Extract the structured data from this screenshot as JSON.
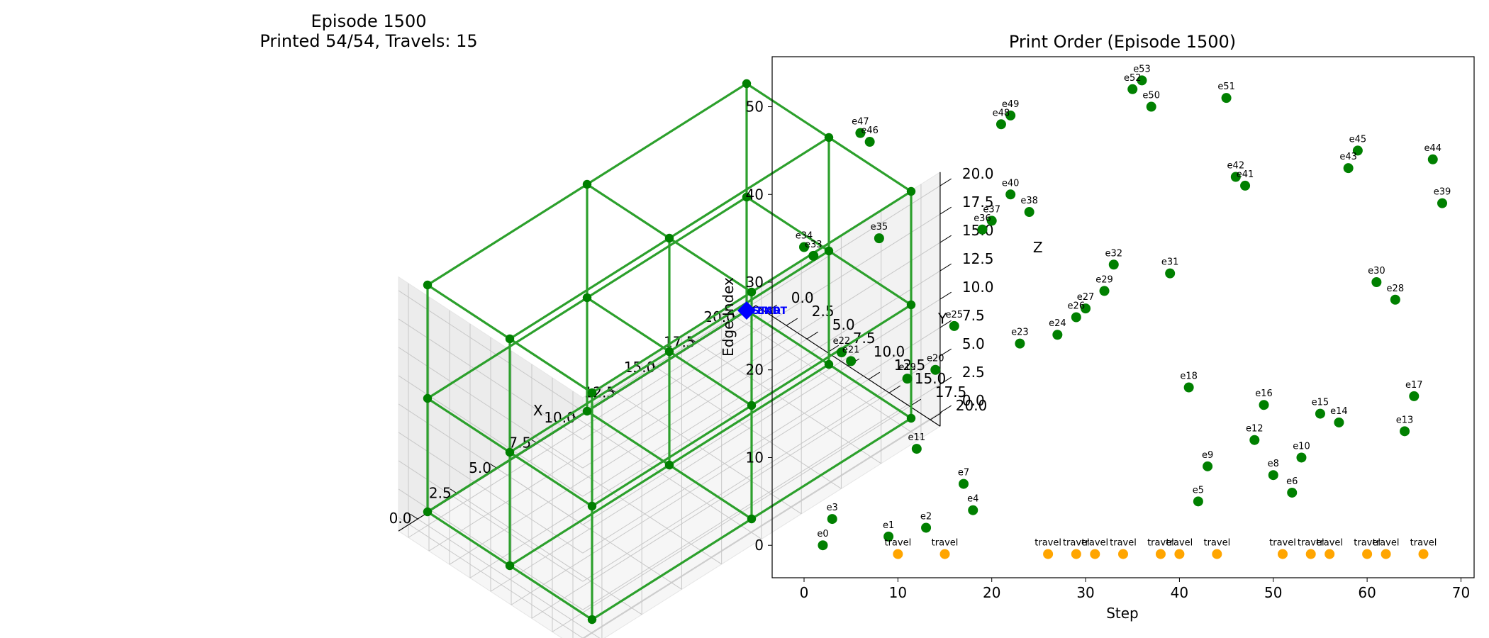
{
  "chart_data": [
    {
      "type": "line3d",
      "title_line1": "Episode 1500",
      "title_line2": "Printed 54/54, Travels: 15",
      "xlabel": "X",
      "ylabel": "Y",
      "zlabel": "Z",
      "xlim": [
        0,
        20
      ],
      "ylim": [
        0,
        20
      ],
      "zlim": [
        0,
        20
      ],
      "ticks": [
        "0.0",
        "2.5",
        "5.0",
        "7.5",
        "10.0",
        "12.5",
        "15.0",
        "17.5",
        "20.0"
      ],
      "grid": true,
      "edge_color": "#2ca02c",
      "node_color": "#008000",
      "start_color": "#0000ff",
      "start_marker": {
        "x": 20,
        "y": 0,
        "z": 0,
        "label": "START"
      },
      "end_label": "END",
      "nodes": [
        [
          0,
          0,
          0
        ],
        [
          10,
          0,
          0
        ],
        [
          20,
          0,
          0
        ],
        [
          0,
          10,
          0
        ],
        [
          10,
          10,
          0
        ],
        [
          20,
          10,
          0
        ],
        [
          0,
          20,
          0
        ],
        [
          10,
          20,
          0
        ],
        [
          20,
          20,
          0
        ],
        [
          0,
          0,
          10
        ],
        [
          10,
          0,
          10
        ],
        [
          20,
          0,
          10
        ],
        [
          0,
          10,
          10
        ],
        [
          10,
          10,
          10
        ],
        [
          20,
          10,
          10
        ],
        [
          0,
          20,
          10
        ],
        [
          10,
          20,
          10
        ],
        [
          20,
          20,
          10
        ],
        [
          0,
          0,
          20
        ],
        [
          10,
          0,
          20
        ],
        [
          20,
          0,
          20
        ],
        [
          0,
          10,
          20
        ],
        [
          10,
          10,
          20
        ],
        [
          20,
          10,
          20
        ],
        [
          0,
          20,
          20
        ],
        [
          10,
          20,
          20
        ],
        [
          20,
          20,
          20
        ]
      ],
      "edges": [
        [
          0,
          1
        ],
        [
          1,
          2
        ],
        [
          3,
          4
        ],
        [
          4,
          5
        ],
        [
          6,
          7
        ],
        [
          7,
          8
        ],
        [
          0,
          3
        ],
        [
          3,
          6
        ],
        [
          1,
          4
        ],
        [
          4,
          7
        ],
        [
          2,
          5
        ],
        [
          5,
          8
        ],
        [
          9,
          10
        ],
        [
          10,
          11
        ],
        [
          12,
          13
        ],
        [
          13,
          14
        ],
        [
          15,
          16
        ],
        [
          16,
          17
        ],
        [
          9,
          12
        ],
        [
          12,
          15
        ],
        [
          10,
          13
        ],
        [
          13,
          16
        ],
        [
          11,
          14
        ],
        [
          14,
          17
        ],
        [
          18,
          19
        ],
        [
          19,
          20
        ],
        [
          21,
          22
        ],
        [
          22,
          23
        ],
        [
          24,
          25
        ],
        [
          25,
          26
        ],
        [
          18,
          21
        ],
        [
          21,
          24
        ],
        [
          19,
          22
        ],
        [
          22,
          25
        ],
        [
          20,
          23
        ],
        [
          23,
          26
        ],
        [
          0,
          9
        ],
        [
          1,
          10
        ],
        [
          2,
          11
        ],
        [
          3,
          12
        ],
        [
          4,
          13
        ],
        [
          5,
          14
        ],
        [
          6,
          15
        ],
        [
          7,
          16
        ],
        [
          8,
          17
        ],
        [
          9,
          18
        ],
        [
          10,
          19
        ],
        [
          11,
          20
        ],
        [
          12,
          21
        ],
        [
          13,
          22
        ],
        [
          14,
          23
        ],
        [
          15,
          24
        ],
        [
          16,
          25
        ],
        [
          17,
          26
        ]
      ]
    },
    {
      "type": "scatter",
      "title": "Print Order (Episode 1500)",
      "xlabel": "Step",
      "ylabel": "Edge Index",
      "xlim": [
        -3.4,
        71.4
      ],
      "ylim": [
        -3.7,
        55.7
      ],
      "xticks": [
        0,
        10,
        20,
        30,
        40,
        50,
        60,
        70
      ],
      "yticks": [
        0,
        10,
        20,
        30,
        40,
        50
      ],
      "grid": false,
      "series": [
        {
          "color": "#008000",
          "points": [
            {
              "x": 2,
              "y": 0,
              "label": "e0"
            },
            {
              "x": 9,
              "y": 1,
              "label": "e1"
            },
            {
              "x": 13,
              "y": 2,
              "label": "e2"
            },
            {
              "x": 3,
              "y": 3,
              "label": "e3"
            },
            {
              "x": 18,
              "y": 4,
              "label": "e4"
            },
            {
              "x": 42,
              "y": 5,
              "label": "e5"
            },
            {
              "x": 52,
              "y": 6,
              "label": "e6"
            },
            {
              "x": 17,
              "y": 7,
              "label": "e7"
            },
            {
              "x": 50,
              "y": 8,
              "label": "e8"
            },
            {
              "x": 43,
              "y": 9,
              "label": "e9"
            },
            {
              "x": 53,
              "y": 10,
              "label": "e10"
            },
            {
              "x": 12,
              "y": 11,
              "label": "e11"
            },
            {
              "x": 48,
              "y": 12,
              "label": "e12"
            },
            {
              "x": 64,
              "y": 13,
              "label": "e13"
            },
            {
              "x": 57,
              "y": 14,
              "label": "e14"
            },
            {
              "x": 55,
              "y": 15,
              "label": "e15"
            },
            {
              "x": 49,
              "y": 16,
              "label": "e16"
            },
            {
              "x": 65,
              "y": 17,
              "label": "e17"
            },
            {
              "x": 41,
              "y": 18,
              "label": "e18"
            },
            {
              "x": 11,
              "y": 19,
              "label": "e19"
            },
            {
              "x": 14,
              "y": 20,
              "label": "e20"
            },
            {
              "x": 5,
              "y": 21,
              "label": "e21"
            },
            {
              "x": 4,
              "y": 22,
              "label": "e22"
            },
            {
              "x": 23,
              "y": 23,
              "label": "e23"
            },
            {
              "x": 27,
              "y": 24,
              "label": "e24"
            },
            {
              "x": 16,
              "y": 25,
              "label": "e25"
            },
            {
              "x": 29,
              "y": 26,
              "label": "e26"
            },
            {
              "x": 30,
              "y": 27,
              "label": "e27"
            },
            {
              "x": 63,
              "y": 28,
              "label": "e28"
            },
            {
              "x": 32,
              "y": 29,
              "label": "e29"
            },
            {
              "x": 61,
              "y": 30,
              "label": "e30"
            },
            {
              "x": 39,
              "y": 31,
              "label": "e31"
            },
            {
              "x": 33,
              "y": 32,
              "label": "e32"
            },
            {
              "x": 1,
              "y": 33,
              "label": "e33"
            },
            {
              "x": 0,
              "y": 34,
              "label": "e34"
            },
            {
              "x": 8,
              "y": 35,
              "label": "e35"
            },
            {
              "x": 19,
              "y": 36,
              "label": "e36"
            },
            {
              "x": 20,
              "y": 37,
              "label": "e37"
            },
            {
              "x": 24,
              "y": 38,
              "label": "e38"
            },
            {
              "x": 68,
              "y": 39,
              "label": "e39"
            },
            {
              "x": 22,
              "y": 40,
              "label": "e40"
            },
            {
              "x": 47,
              "y": 41,
              "label": "e41"
            },
            {
              "x": 46,
              "y": 42,
              "label": "e42"
            },
            {
              "x": 58,
              "y": 43,
              "label": "e43"
            },
            {
              "x": 67,
              "y": 44,
              "label": "e44"
            },
            {
              "x": 59,
              "y": 45,
              "label": "e45"
            },
            {
              "x": 7,
              "y": 46,
              "label": "e46"
            },
            {
              "x": 6,
              "y": 47,
              "label": "e47"
            },
            {
              "x": 21,
              "y": 48,
              "label": "e48"
            },
            {
              "x": 22,
              "y": 49,
              "label": "e49"
            },
            {
              "x": 37,
              "y": 50,
              "label": "e50"
            },
            {
              "x": 45,
              "y": 51,
              "label": "e51"
            },
            {
              "x": 35,
              "y": 52,
              "label": "e52"
            },
            {
              "x": 36,
              "y": 53,
              "label": "e53"
            }
          ]
        },
        {
          "color": "#ffa500",
          "points": [
            {
              "x": 10,
              "y": -1,
              "label": "travel"
            },
            {
              "x": 15,
              "y": -1,
              "label": "travel"
            },
            {
              "x": 26,
              "y": -1,
              "label": "travel"
            },
            {
              "x": 29,
              "y": -1,
              "label": "travel"
            },
            {
              "x": 31,
              "y": -1,
              "label": "travel"
            },
            {
              "x": 34,
              "y": -1,
              "label": "travel"
            },
            {
              "x": 38,
              "y": -1,
              "label": "travel"
            },
            {
              "x": 40,
              "y": -1,
              "label": "travel"
            },
            {
              "x": 44,
              "y": -1,
              "label": "travel"
            },
            {
              "x": 51,
              "y": -1,
              "label": "travel"
            },
            {
              "x": 54,
              "y": -1,
              "label": "travel"
            },
            {
              "x": 56,
              "y": -1,
              "label": "travel"
            },
            {
              "x": 60,
              "y": -1,
              "label": "travel"
            },
            {
              "x": 62,
              "y": -1,
              "label": "travel"
            },
            {
              "x": 66,
              "y": -1,
              "label": "travel"
            }
          ]
        }
      ]
    }
  ]
}
